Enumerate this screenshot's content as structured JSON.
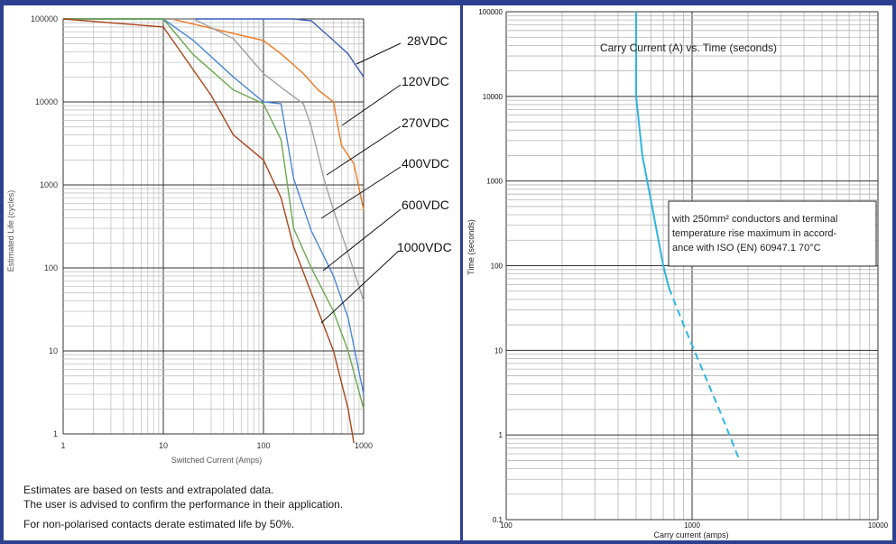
{
  "chart_data": [
    {
      "type": "line",
      "xscale": "log",
      "yscale": "log",
      "xlabel": "Switched Current (Amps)",
      "ylabel": "Estimated Life (cycles)",
      "xlim": [
        1,
        1000
      ],
      "ylim": [
        1,
        100000
      ],
      "xticks": [
        "1",
        "10",
        "100",
        "1000"
      ],
      "yticks": [
        "1",
        "10",
        "100",
        "1000",
        "10000",
        "100000"
      ],
      "grid": true,
      "legend": "callout labels on right side",
      "series": [
        {
          "name": "28VDC",
          "color": "#3a5bb8",
          "x": [
            1,
            150,
            200,
            300,
            500,
            700,
            1000
          ],
          "y": [
            100000,
            100000,
            100000,
            95000,
            55000,
            38000,
            20000
          ]
        },
        {
          "name": "120VDC",
          "color": "#f07820",
          "x": [
            1,
            12,
            100,
            150,
            250,
            350,
            500,
            600,
            800,
            1000
          ],
          "y": [
            100000,
            100000,
            55000,
            38000,
            22000,
            14000,
            10000,
            3000,
            1800,
            500
          ]
        },
        {
          "name": "270VDC",
          "color": "#a0a0a0",
          "x": [
            1,
            20,
            50,
            100,
            150,
            250,
            300,
            400,
            500,
            700,
            1000
          ],
          "y": [
            100000,
            100000,
            58000,
            22000,
            15000,
            9500,
            5000,
            1200,
            500,
            150,
            40
          ]
        },
        {
          "name": "400VDC",
          "color": "#4a86d8",
          "x": [
            1,
            10,
            20,
            50,
            100,
            150,
            200,
            300,
            500,
            700,
            1000
          ],
          "y": [
            100000,
            100000,
            55000,
            20000,
            10000,
            9500,
            1200,
            280,
            80,
            25,
            3
          ]
        },
        {
          "name": "600VDC",
          "color": "#6aa84f",
          "x": [
            1,
            10,
            20,
            50,
            100,
            150,
            200,
            300,
            500,
            700,
            1000
          ],
          "y": [
            100000,
            100000,
            37000,
            14000,
            9500,
            3500,
            300,
            100,
            30,
            10,
            2
          ]
        },
        {
          "name": "1000VDC",
          "color": "#a84418",
          "x": [
            1,
            10,
            30,
            50,
            100,
            150,
            200,
            300,
            500,
            700,
            800
          ],
          "y": [
            100000,
            80000,
            12000,
            4000,
            2000,
            700,
            180,
            50,
            10,
            2,
            0.7
          ]
        }
      ]
    },
    {
      "type": "line",
      "xscale": "log",
      "yscale": "log",
      "title": "Carry Current (A) vs. Time (seconds)",
      "xlabel": "Carry current (amps)",
      "ylabel": "Time (seconds)",
      "xlim": [
        100,
        10000
      ],
      "ylim": [
        0.1,
        100000
      ],
      "xticks": [
        "100",
        "1000",
        "10000"
      ],
      "yticks": [
        "0.1",
        "1",
        "10",
        "100",
        "1000",
        "10000",
        "100000"
      ],
      "grid": true,
      "annotation": "with 250mm² conductors and terminal temperature rise maximum in accord-ance with ISO (EN) 60947.1 70°C",
      "series": [
        {
          "style": "solid",
          "color": "#2db5e0",
          "x": [
            500,
            500,
            500,
            540,
            600,
            700,
            750
          ],
          "y": [
            100000,
            20000,
            10000,
            2000,
            600,
            100,
            55
          ]
        },
        {
          "style": "dashed",
          "color": "#2db5e0",
          "x": [
            750,
            900,
            1100,
            1400,
            1800
          ],
          "y": [
            55,
            20,
            7,
            2,
            0.5
          ]
        }
      ]
    }
  ],
  "left_chart": {
    "xlabel": "Switched Current (Amps)",
    "ylabel": "Estimated Life (cycles)",
    "xticks": [
      "1",
      "10",
      "100",
      "1000"
    ],
    "yticks": [
      "1",
      "10",
      "100",
      "1000",
      "10000",
      "100000"
    ],
    "labels": [
      "28VDC",
      "120VDC",
      "270VDC",
      "400VDC",
      "600VDC",
      "1000VDC"
    ]
  },
  "right_chart": {
    "title": "Carry Current (A) vs. Time (seconds)",
    "xlabel": "Carry current (amps)",
    "ylabel": "Time (seconds)",
    "xticks": [
      "100",
      "1000",
      "10000"
    ],
    "yticks": [
      "0.1",
      "1",
      "10",
      "100",
      "1000",
      "10000",
      "100000"
    ],
    "annotation_lines": [
      "with 250mm² conductors and terminal",
      "temperature rise maximum in accord-",
      "ance with ISO (EN) 60947.1 70°C"
    ]
  },
  "notes": {
    "line1": "Estimates are based on tests and extrapolated data.",
    "line2": "The user is advised to confirm the performance in their application.",
    "line3": "For non-polarised contacts derate estimated life by 50%."
  }
}
